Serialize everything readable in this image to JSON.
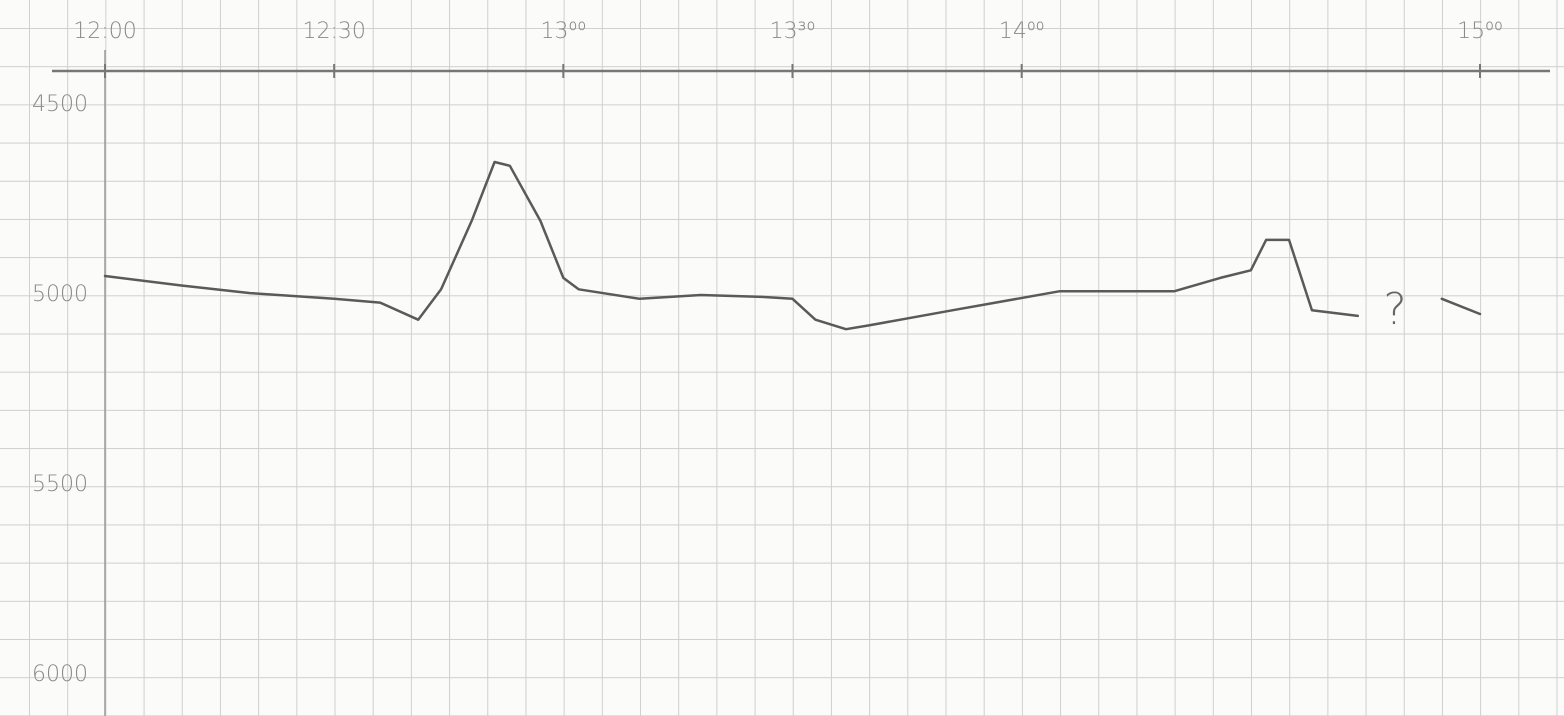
{
  "chart_data": {
    "type": "line",
    "x": [
      720,
      730,
      739,
      750,
      756,
      761,
      764,
      768,
      771,
      773,
      777,
      780,
      782,
      790,
      798,
      806,
      810,
      813,
      817,
      820,
      831,
      845,
      860,
      866,
      870,
      872,
      875,
      878,
      884,
      null,
      895,
      900
    ],
    "series": [
      {
        "color": "#5a5a5a",
        "values": [
          4950,
          4975,
          4995,
          5010,
          5020,
          5065,
          4985,
          4805,
          4650,
          4660,
          4805,
          4955,
          4985,
          5010,
          5000,
          5005,
          5010,
          5065,
          5090,
          5080,
          5040,
          4990,
          4990,
          4955,
          4935,
          4855,
          4855,
          5040,
          5055,
          null,
          5010,
          5050
        ]
      }
    ],
    "xlim": [
      720,
      900
    ],
    "xticks": [
      {
        "value": 720,
        "label": "12:00"
      },
      {
        "value": 750,
        "label": "12:30"
      },
      {
        "value": 780,
        "label": "13⁰⁰"
      },
      {
        "value": 810,
        "label": "13³⁰"
      },
      {
        "value": 840,
        "label": "14⁰⁰"
      },
      {
        "value": 900,
        "label": "15⁰⁰"
      }
    ],
    "ylim": [
      4500,
      6000
    ],
    "yticks": [
      4500,
      5000,
      5500,
      6000
    ],
    "y_reversed": true,
    "annotation": "?"
  }
}
